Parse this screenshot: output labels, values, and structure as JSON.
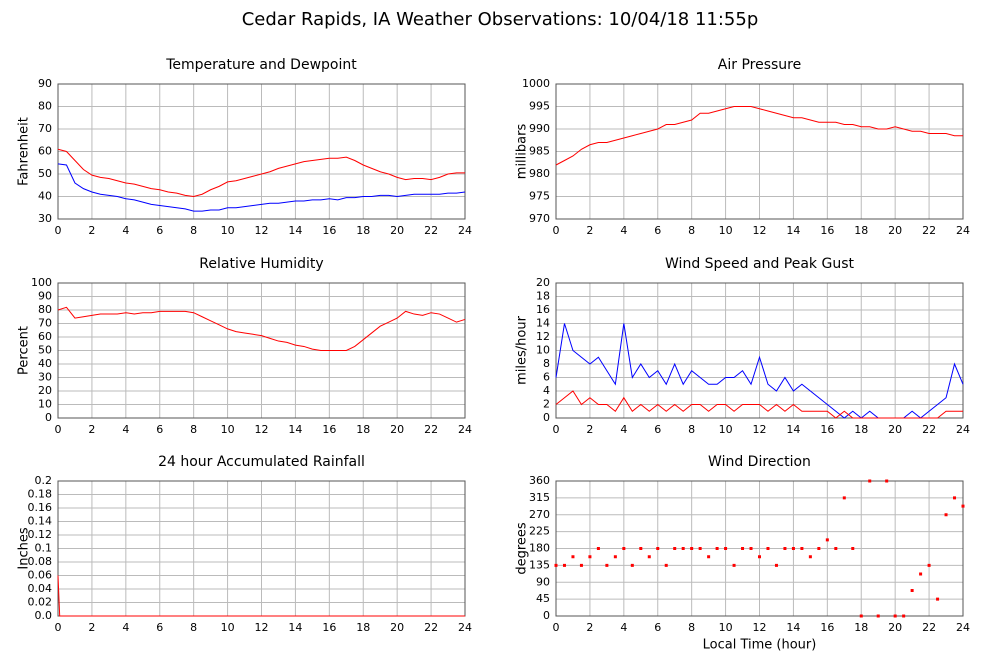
{
  "title": "Cedar Rapids, IA Weather Observations: 10/04/18 11:55p",
  "chart_data": [
    {
      "type": "line",
      "title": "Temperature and Dewpoint",
      "ylabel": "Fahrenheit",
      "x": [
        0,
        0.5,
        1,
        1.5,
        2,
        2.5,
        3,
        3.5,
        4,
        4.5,
        5,
        5.5,
        6,
        6.5,
        7,
        7.5,
        8,
        8.5,
        9,
        9.5,
        10,
        10.5,
        11,
        11.5,
        12,
        12.5,
        13,
        13.5,
        14,
        14.5,
        15,
        15.5,
        16,
        16.5,
        17,
        17.5,
        18,
        18.5,
        19,
        19.5,
        20,
        20.5,
        21,
        21.5,
        22,
        22.5,
        23,
        23.5,
        24
      ],
      "series": [
        {
          "color": "#ff0000",
          "values": [
            61,
            60,
            56,
            52,
            49.5,
            48.5,
            48,
            47,
            46,
            45.5,
            44.5,
            43.5,
            43,
            42,
            41.5,
            40.5,
            40,
            41,
            43,
            44.5,
            46.5,
            47,
            48,
            49,
            50,
            51,
            52.5,
            53.5,
            54.5,
            55.5,
            56,
            56.5,
            57,
            57,
            57.5,
            56,
            54,
            52.5,
            51,
            50,
            48.5,
            47.5,
            48,
            48,
            47.5,
            48.5,
            50,
            50.5,
            50.5
          ]
        },
        {
          "color": "#0000ff",
          "values": [
            54.5,
            54,
            46,
            43.5,
            42,
            41,
            40.5,
            40,
            39,
            38.5,
            37.5,
            36.5,
            36,
            35.5,
            35,
            34.5,
            33.5,
            33.5,
            34,
            34,
            35,
            35,
            35.5,
            36,
            36.5,
            37,
            37,
            37.5,
            38,
            38,
            38.5,
            38.5,
            39,
            38.5,
            39.5,
            39.5,
            40,
            40,
            40.5,
            40.5,
            40,
            40.5,
            41,
            41,
            41,
            41,
            41.5,
            41.5,
            42
          ]
        }
      ],
      "xlim": [
        0,
        24
      ],
      "xticks": [
        0,
        2,
        4,
        6,
        8,
        10,
        12,
        14,
        16,
        18,
        20,
        22,
        24
      ],
      "ylim": [
        30,
        90
      ],
      "yticks": [
        30,
        40,
        50,
        60,
        70,
        80,
        90
      ],
      "grid": true
    },
    {
      "type": "line",
      "title": "Air Pressure",
      "ylabel": "millibars",
      "x": [
        0,
        0.5,
        1,
        1.5,
        2,
        2.5,
        3,
        3.5,
        4,
        4.5,
        5,
        5.5,
        6,
        6.5,
        7,
        7.5,
        8,
        8.5,
        9,
        9.5,
        10,
        10.5,
        11,
        11.5,
        12,
        12.5,
        13,
        13.5,
        14,
        14.5,
        15,
        15.5,
        16,
        16.5,
        17,
        17.5,
        18,
        18.5,
        19,
        19.5,
        20,
        20.5,
        21,
        21.5,
        22,
        22.5,
        23,
        23.5,
        24
      ],
      "series": [
        {
          "color": "#ff0000",
          "values": [
            982,
            983,
            984,
            985.5,
            986.5,
            987,
            987,
            987.5,
            988,
            988.5,
            989,
            989.5,
            990,
            991,
            991,
            991.5,
            992,
            993.5,
            993.5,
            994,
            994.5,
            995,
            995,
            995,
            994.5,
            994,
            993.5,
            993,
            992.5,
            992.5,
            992,
            991.5,
            991.5,
            991.5,
            991,
            991,
            990.5,
            990.5,
            990,
            990,
            990.5,
            990,
            989.5,
            989.5,
            989,
            989,
            989,
            988.5,
            988.5
          ]
        }
      ],
      "xlim": [
        0,
        24
      ],
      "xticks": [
        0,
        2,
        4,
        6,
        8,
        10,
        12,
        14,
        16,
        18,
        20,
        22,
        24
      ],
      "ylim": [
        970,
        1000
      ],
      "yticks": [
        970,
        975,
        980,
        985,
        990,
        995,
        1000
      ],
      "grid": true
    },
    {
      "type": "line",
      "title": "Relative Humidity",
      "ylabel": "Percent",
      "x": [
        0,
        0.5,
        1,
        1.5,
        2,
        2.5,
        3,
        3.5,
        4,
        4.5,
        5,
        5.5,
        6,
        6.5,
        7,
        7.5,
        8,
        8.5,
        9,
        9.5,
        10,
        10.5,
        11,
        11.5,
        12,
        12.5,
        13,
        13.5,
        14,
        14.5,
        15,
        15.5,
        16,
        16.5,
        17,
        17.5,
        18,
        18.5,
        19,
        19.5,
        20,
        20.5,
        21,
        21.5,
        22,
        22.5,
        23,
        23.5,
        24
      ],
      "series": [
        {
          "color": "#ff0000",
          "values": [
            80,
            82,
            74,
            75,
            76,
            77,
            77,
            77,
            78,
            77,
            78,
            78,
            79,
            79,
            79,
            79,
            78,
            75,
            72,
            69,
            66,
            64,
            63,
            62,
            61,
            59,
            57,
            56,
            54,
            53,
            51,
            50,
            50,
            50,
            50,
            53,
            58,
            63,
            68,
            71,
            74,
            79,
            77,
            76,
            78,
            77,
            74,
            71,
            73
          ]
        }
      ],
      "xlim": [
        0,
        24
      ],
      "xticks": [
        0,
        2,
        4,
        6,
        8,
        10,
        12,
        14,
        16,
        18,
        20,
        22,
        24
      ],
      "ylim": [
        0,
        100
      ],
      "yticks": [
        0,
        10,
        20,
        30,
        40,
        50,
        60,
        70,
        80,
        90,
        100
      ],
      "grid": true
    },
    {
      "type": "line",
      "title": "Wind Speed and Peak Gust",
      "ylabel": "miles/hour",
      "x": [
        0,
        0.5,
        1,
        1.5,
        2,
        2.5,
        3,
        3.5,
        4,
        4.5,
        5,
        5.5,
        6,
        6.5,
        7,
        7.5,
        8,
        8.5,
        9,
        9.5,
        10,
        10.5,
        11,
        11.5,
        12,
        12.5,
        13,
        13.5,
        14,
        14.5,
        15,
        15.5,
        16,
        16.5,
        17,
        17.5,
        18,
        18.5,
        19,
        19.5,
        20,
        20.5,
        21,
        21.5,
        22,
        22.5,
        23,
        23.5,
        24
      ],
      "series": [
        {
          "color": "#0000ff",
          "values": [
            6,
            14,
            10,
            9,
            8,
            9,
            7,
            5,
            14,
            6,
            8,
            6,
            7,
            5,
            8,
            5,
            7,
            6,
            5,
            5,
            6,
            6,
            7,
            5,
            9,
            5,
            4,
            6,
            4,
            5,
            4,
            3,
            2,
            1,
            0,
            1,
            0,
            1,
            0,
            0,
            0,
            0,
            1,
            0,
            1,
            2,
            3,
            8,
            5
          ]
        },
        {
          "color": "#ff0000",
          "values": [
            2,
            3,
            4,
            2,
            3,
            2,
            2,
            1,
            3,
            1,
            2,
            1,
            2,
            1,
            2,
            1,
            2,
            2,
            1,
            2,
            2,
            1,
            2,
            2,
            2,
            1,
            2,
            1,
            2,
            1,
            1,
            1,
            1,
            0,
            1,
            0,
            0,
            0,
            0,
            0,
            0,
            0,
            0,
            0,
            0,
            0,
            1,
            1,
            1
          ]
        }
      ],
      "xlim": [
        0,
        24
      ],
      "xticks": [
        0,
        2,
        4,
        6,
        8,
        10,
        12,
        14,
        16,
        18,
        20,
        22,
        24
      ],
      "ylim": [
        0,
        20
      ],
      "yticks": [
        0,
        2,
        4,
        6,
        8,
        10,
        12,
        14,
        16,
        18,
        20
      ],
      "grid": true
    },
    {
      "type": "line",
      "title": "24 hour Accumulated Rainfall",
      "ylabel": "Inches",
      "x": [
        0,
        0.1,
        24
      ],
      "series": [
        {
          "color": "#ff0000",
          "values": [
            0.06,
            0,
            0
          ]
        }
      ],
      "xlim": [
        0,
        24
      ],
      "xticks": [
        0,
        2,
        4,
        6,
        8,
        10,
        12,
        14,
        16,
        18,
        20,
        22,
        24
      ],
      "ylim": [
        0,
        0.2
      ],
      "yticks": [
        {
          "value": 0,
          "label": "0.0"
        },
        0.02,
        0.04,
        0.06,
        0.08,
        0.1,
        0.12,
        0.14,
        0.16,
        0.18,
        0.2
      ],
      "grid": true
    },
    {
      "type": "scatter",
      "title": "Wind Direction",
      "ylabel": "degrees",
      "xlabel": "Local Time (hour)",
      "x": [
        0,
        0.5,
        1,
        1.5,
        2,
        2.5,
        3,
        3.5,
        4,
        4.5,
        5,
        5.5,
        6,
        6.5,
        7,
        7.5,
        8,
        8.5,
        9,
        9.5,
        10,
        10.5,
        11,
        11.5,
        12,
        12.5,
        13,
        13.5,
        14,
        14.5,
        15,
        15.5,
        16,
        16.5,
        17,
        17.5,
        18,
        18.5,
        19,
        19.5,
        20,
        20.5,
        21,
        21.5,
        22,
        22.5,
        23,
        23.5,
        24
      ],
      "series": [
        {
          "color": "#ff0000",
          "values": [
            135,
            135,
            158,
            135,
            158,
            180,
            135,
            158,
            180,
            135,
            180,
            158,
            180,
            135,
            180,
            180,
            180,
            180,
            158,
            180,
            180,
            135,
            180,
            180,
            158,
            180,
            135,
            180,
            180,
            180,
            158,
            180,
            203,
            180,
            315,
            180,
            0,
            360,
            0,
            360,
            0,
            0,
            68,
            112,
            135,
            45,
            270,
            315,
            293
          ]
        }
      ],
      "xlim": [
        0,
        24
      ],
      "xticks": [
        0,
        2,
        4,
        6,
        8,
        10,
        12,
        14,
        16,
        18,
        20,
        22,
        24
      ],
      "ylim": [
        0,
        360
      ],
      "yticks": [
        0,
        45,
        90,
        135,
        180,
        225,
        270,
        315,
        360
      ],
      "grid": true
    }
  ]
}
